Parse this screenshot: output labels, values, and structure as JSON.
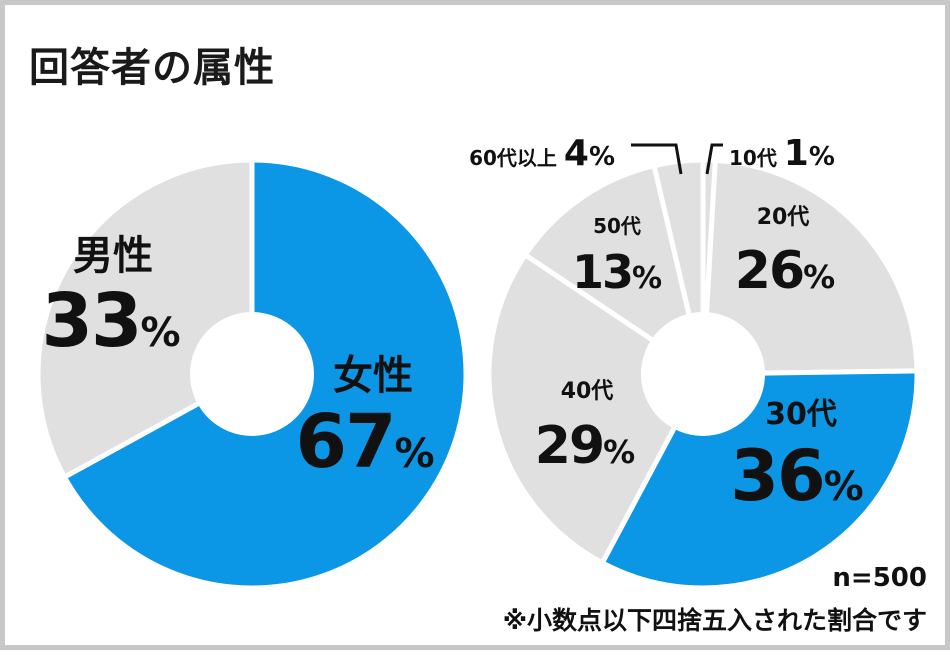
{
  "title": "回答者の属性",
  "colors": {
    "highlight": "#0b96e6",
    "base": "#e0e0e0",
    "separator": "#ffffff",
    "text": "#111111"
  },
  "chart_data": [
    {
      "type": "pie",
      "subtype": "donut",
      "slices": [
        {
          "label": "女性",
          "value": 67,
          "value_text": "67%",
          "highlight": true
        },
        {
          "label": "男性",
          "value": 33,
          "value_text": "33%",
          "highlight": false
        }
      ]
    },
    {
      "type": "pie",
      "subtype": "donut",
      "slices": [
        {
          "label": "10代",
          "value": 1,
          "value_text": "1%",
          "highlight": false
        },
        {
          "label": "20代",
          "value": 26,
          "value_text": "26%",
          "highlight": false
        },
        {
          "label": "30代",
          "value": 36,
          "value_text": "36%",
          "highlight": true
        },
        {
          "label": "40代",
          "value": 29,
          "value_text": "29%",
          "highlight": false
        },
        {
          "label": "50代",
          "value": 13,
          "value_text": "13%",
          "highlight": false
        },
        {
          "label": "60代以上",
          "value": 4,
          "value_text": "4%",
          "highlight": false
        }
      ]
    }
  ],
  "footer": {
    "sample_size": "n=500",
    "note": "※小数点以下四捨五入された割合です"
  }
}
